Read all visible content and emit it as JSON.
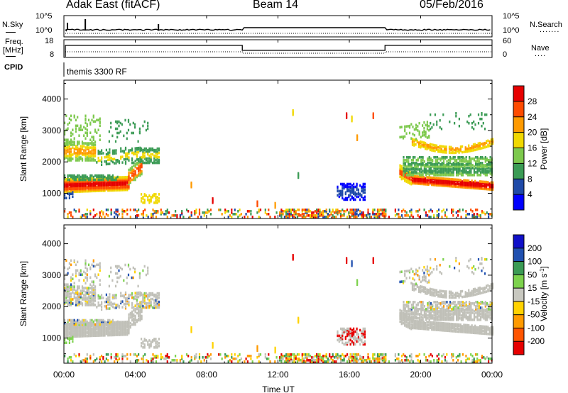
{
  "header": {
    "radar": "Adak East (fitACF)",
    "beam": "Beam 14",
    "date": "05/Feb/2016"
  },
  "top_panel": {
    "left_label": "N.Sky",
    "left_ticks": [
      "10^5",
      "10^0"
    ],
    "right_ticks": [
      "10^5",
      "10^0"
    ],
    "right_label": "N.Search",
    "right_legend": "......."
  },
  "freq_panel": {
    "left_label_line1": "Freq.",
    "left_label_line2": "[MHz]",
    "left_ticks": [
      "18",
      "8"
    ],
    "right_ticks": [
      "60",
      "0"
    ],
    "right_label": "Nave",
    "right_legend": "....",
    "cpid_label": "CPID",
    "cpid_text": "themis 3300 RF"
  },
  "colors": {
    "power": [
      "#0000ff",
      "#1f4aa8",
      "#3b9b55",
      "#7dc94d",
      "#f0d800",
      "#ff9a00",
      "#ff4b00",
      "#e60000"
    ],
    "velocity": [
      "#e60000",
      "#ff5500",
      "#ff9a00",
      "#ffd200",
      "#c8c8c0",
      "#7dd24d",
      "#3b9b55",
      "#2050b0",
      "#1010c8"
    ],
    "ground": "#c0c0b8"
  },
  "chart_data": [
    {
      "type": "heatmap",
      "title": "",
      "xlabel": "Time UT",
      "ylabel": "Slant Range [km]",
      "xlim": [
        "00:00",
        "24:00"
      ],
      "x_ticks": [
        "00:00",
        "04:00",
        "08:00",
        "12:00",
        "16:00",
        "20:00",
        "00:00"
      ],
      "ylim": [
        200,
        4600
      ],
      "y_ticks": [
        "1000",
        "2000",
        "3000",
        "4000"
      ],
      "colorbar": {
        "label": "Power [dB]",
        "ticks": [
          "4",
          "8",
          "12",
          "16",
          "20",
          "24",
          "28"
        ],
        "range": [
          0,
          32
        ]
      }
    },
    {
      "type": "heatmap",
      "title": "",
      "xlabel": "Time UT",
      "ylabel": "Slant Range [km]",
      "xlim": [
        "00:00",
        "24:00"
      ],
      "x_ticks": [
        "00:00",
        "04:00",
        "08:00",
        "12:00",
        "16:00",
        "20:00",
        "00:00"
      ],
      "ylim": [
        200,
        4600
      ],
      "y_ticks": [
        "1000",
        "2000",
        "3000",
        "4000"
      ],
      "colorbar": {
        "label": "Velocity [m s^-1]",
        "ticks": [
          "200",
          "100",
          "50",
          "15",
          "-15",
          "-50",
          "-100",
          "-200"
        ],
        "range": [
          -250,
          250
        ]
      }
    }
  ],
  "time_axis_label": "Time UT"
}
